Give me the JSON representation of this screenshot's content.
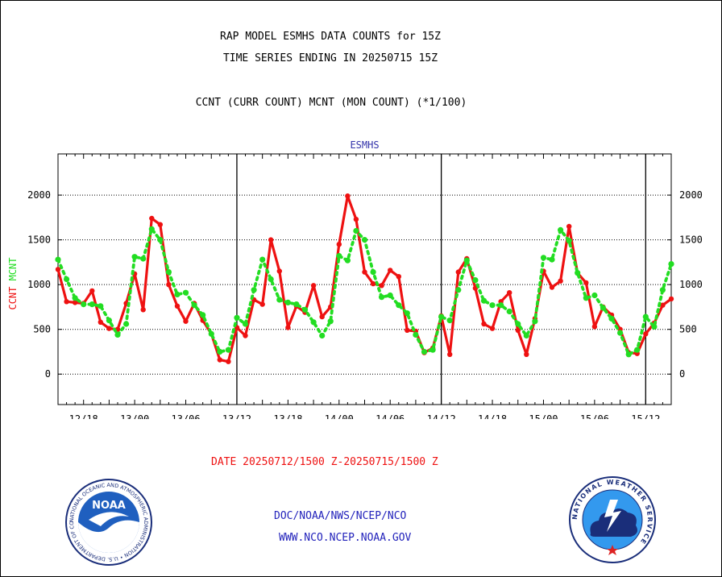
{
  "titles": {
    "line1": "RAP MODEL ESMHS DATA COUNTS for 15Z",
    "line2": "TIME SERIES ENDING IN 20250715 15Z",
    "line3": "CCNT (CURR COUNT) MCNT (MON COUNT) (*1/100)"
  },
  "footer": {
    "date_range": "DATE 20250712/1500 Z-20250715/1500 Z",
    "doc_path": "DOC/NOAA/NWS/NCEP/NCO",
    "website": "WWW.NCO.NCEP.NOAA.GOV"
  },
  "logos": {
    "noaa_text": "NOAA",
    "noaa_ring": "NATIONAL OCEANIC AND ATMOSPHERIC ADMINISTRATION • U.S. DEPARTMENT OF COMMERCE",
    "nws_ring": "NATIONAL WEATHER SERVICE"
  },
  "colors": {
    "ccnt": "#ee1111",
    "mcnt": "#22dd22",
    "panel_title": "#3333aa",
    "footer_date": "#ee1111",
    "footer_links": "#2222bb"
  },
  "chart_data": {
    "type": "line",
    "title": "ESMHS",
    "xlabel": "",
    "ylabel_left": [
      "CCNT",
      "MCNT"
    ],
    "ylim": [
      -340,
      2460
    ],
    "y_ticks": [
      0,
      500,
      1000,
      1500,
      2000
    ],
    "x_tick_labels": [
      "12/18",
      "13/00",
      "13/06",
      "13/12",
      "13/18",
      "14/00",
      "14/06",
      "14/12",
      "14/18",
      "15/00",
      "15/06",
      "15/12"
    ],
    "x_tick_hours": [
      3,
      9,
      15,
      21,
      27,
      33,
      39,
      45,
      51,
      57,
      63,
      69
    ],
    "day_dividers_hours": [
      21,
      45,
      69
    ],
    "x_start": "20250712/1500",
    "hours_range": [
      0,
      72
    ],
    "grid": true,
    "series": [
      {
        "name": "CCNT",
        "x": [
          0,
          1,
          2,
          3,
          4,
          5,
          6,
          7,
          8,
          9,
          10,
          11,
          12,
          13,
          14,
          15,
          16,
          17,
          18,
          19,
          20,
          21,
          22,
          23,
          24,
          25,
          26,
          27,
          28,
          29,
          30,
          31,
          32,
          33,
          34,
          35,
          36,
          37,
          38,
          39,
          40,
          41,
          42,
          43,
          44,
          45,
          46,
          47,
          48,
          49,
          50,
          51,
          52,
          53,
          54,
          55,
          56,
          57,
          58,
          59,
          60,
          61,
          62,
          63,
          64,
          65,
          66,
          67,
          68,
          69,
          70,
          71,
          72
        ],
        "values": [
          1170,
          810,
          800,
          790,
          930,
          580,
          510,
          500,
          790,
          1120,
          720,
          1740,
          1670,
          1000,
          760,
          590,
          790,
          600,
          450,
          160,
          140,
          520,
          430,
          830,
          780,
          1500,
          1150,
          520,
          760,
          690,
          990,
          640,
          750,
          1450,
          1990,
          1730,
          1140,
          1010,
          990,
          1160,
          1090,
          490,
          480,
          240,
          290,
          650,
          220,
          1140,
          1290,
          960,
          560,
          510,
          810,
          910,
          490,
          220,
          620,
          1150,
          970,
          1040,
          1650,
          1130,
          1020,
          530,
          750,
          660,
          500,
          240,
          230,
          450,
          570,
          770,
          840
        ]
      },
      {
        "name": "MCNT",
        "x": [
          0,
          1,
          2,
          3,
          4,
          5,
          6,
          7,
          8,
          9,
          10,
          11,
          12,
          13,
          14,
          15,
          16,
          17,
          18,
          19,
          20,
          21,
          22,
          23,
          24,
          25,
          26,
          27,
          28,
          29,
          30,
          31,
          32,
          33,
          34,
          35,
          36,
          37,
          38,
          39,
          40,
          41,
          42,
          43,
          44,
          45,
          46,
          47,
          48,
          49,
          50,
          51,
          52,
          53,
          54,
          55,
          56,
          57,
          58,
          59,
          60,
          61,
          62,
          63,
          64,
          65,
          66,
          67,
          68,
          69,
          70,
          71,
          72
        ],
        "values": [
          1280,
          1060,
          850,
          780,
          780,
          760,
          600,
          440,
          560,
          1310,
          1290,
          1620,
          1500,
          1140,
          890,
          910,
          770,
          660,
          450,
          250,
          270,
          630,
          560,
          940,
          1280,
          1060,
          830,
          800,
          780,
          720,
          580,
          430,
          590,
          1320,
          1270,
          1600,
          1500,
          1140,
          860,
          880,
          770,
          680,
          440,
          250,
          270,
          640,
          600,
          940,
          1270,
          1050,
          820,
          770,
          770,
          700,
          560,
          430,
          590,
          1300,
          1280,
          1610,
          1490,
          1130,
          850,
          880,
          740,
          620,
          460,
          220,
          270,
          640,
          530,
          940,
          1230
        ]
      }
    ]
  }
}
